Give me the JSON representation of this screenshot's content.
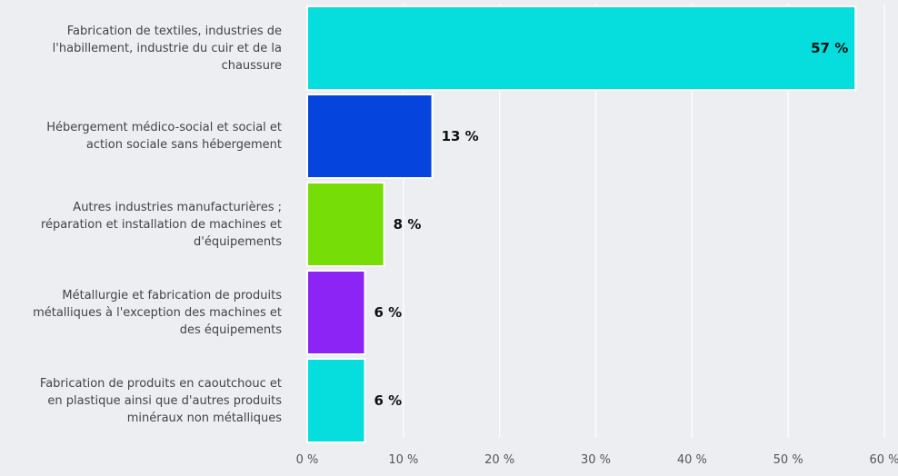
{
  "chart_data": {
    "type": "bar",
    "orientation": "horizontal",
    "categories": [
      [
        "Fabrication de textiles, industries de",
        "l'habillement, industrie du cuir et de la",
        "chaussure"
      ],
      [
        "Hébergement médico-social et social et",
        "action sociale sans hébergement"
      ],
      [
        "Autres industries manufacturières ;",
        "réparation et installation de machines et",
        "d'équipements"
      ],
      [
        "Métallurgie et fabrication de produits",
        "métalliques à l'exception des machines et",
        "des équipements"
      ],
      [
        "Fabrication de produits en caoutchouc et",
        "en plastique ainsi que d'autres produits",
        "minéraux non métalliques"
      ]
    ],
    "values": [
      57,
      13,
      8,
      6,
      6
    ],
    "value_labels": [
      "57 %",
      "13 %",
      "8 %",
      "6 %",
      "6 %"
    ],
    "colors": [
      "#06dede",
      "#0645dd",
      "#76de06",
      "#8c24f5",
      "#06dede"
    ],
    "xlim": [
      0,
      60
    ],
    "x_ticks": [
      0,
      10,
      20,
      30,
      40,
      50,
      60
    ],
    "x_tick_labels": [
      "0 %",
      "10 %",
      "20 %",
      "30 %",
      "40 %",
      "50 %",
      "60 %"
    ],
    "grid": true,
    "legend": "none"
  }
}
